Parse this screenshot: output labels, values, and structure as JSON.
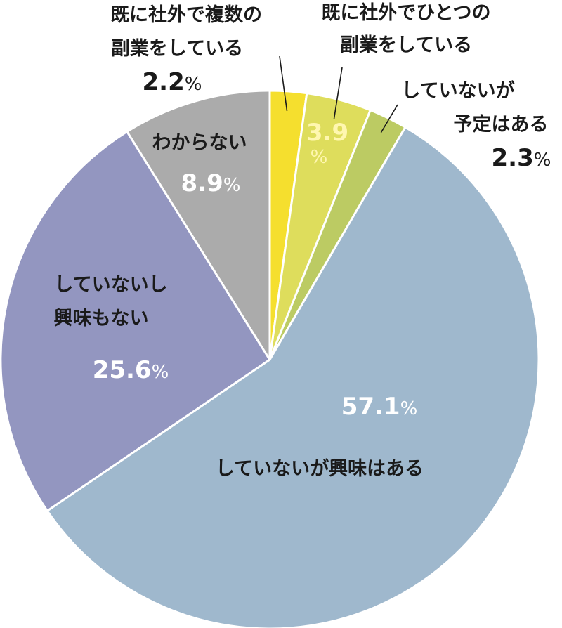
{
  "chart_data": {
    "type": "pie",
    "start_angle_deg": 0,
    "direction": "clockwise",
    "slices": [
      {
        "id": "multi-side-job",
        "label_lines": [
          "既に社外で複数の",
          "副業をしている"
        ],
        "value": 2.2,
        "value_text": "2.2",
        "unit": "%",
        "color": "#f5df2e"
      },
      {
        "id": "single-side-job",
        "label_lines": [
          "既に社外でひとつの",
          "副業をしている"
        ],
        "value": 3.9,
        "value_text": "3.9",
        "unit": "%",
        "color": "#dedd5c"
      },
      {
        "id": "planned",
        "label_lines": [
          "していないが",
          "予定はある"
        ],
        "value": 2.3,
        "value_text": "2.3",
        "unit": "%",
        "color": "#bccb63"
      },
      {
        "id": "interested",
        "label_lines": [
          "していないが興味はある"
        ],
        "value": 57.1,
        "value_text": "57.1",
        "unit": "%",
        "color": "#9fb8cd"
      },
      {
        "id": "not-interested",
        "label_lines": [
          "していないし",
          "興味もない"
        ],
        "value": 25.6,
        "value_text": "25.6",
        "unit": "%",
        "color": "#9396c0"
      },
      {
        "id": "unknown",
        "label_lines": [
          "わからない"
        ],
        "value": 8.9,
        "value_text": "8.9",
        "unit": "%",
        "color": "#ababab"
      }
    ]
  }
}
